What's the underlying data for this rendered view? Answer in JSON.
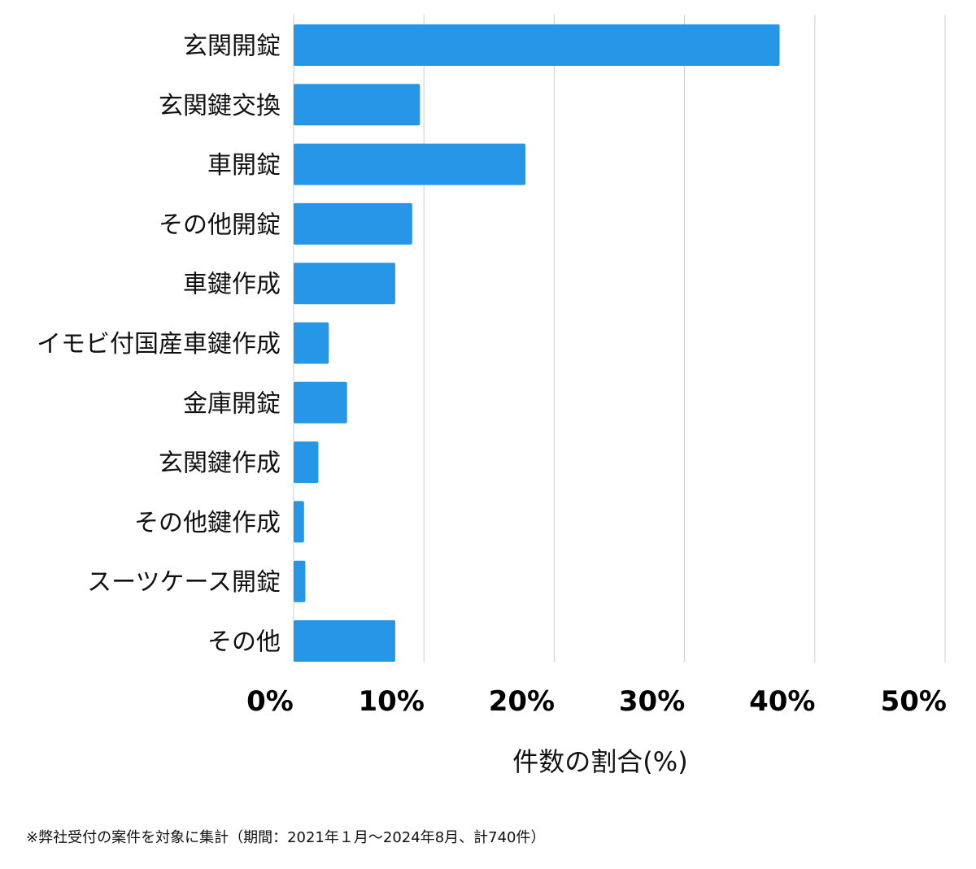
{
  "chart_data": {
    "type": "bar",
    "orientation": "horizontal",
    "categories": [
      "玄関開錠",
      "玄関鍵交換",
      "車開錠",
      "その他開錠",
      "車鍵作成",
      "イモビ付国産車鍵作成",
      "金庫開錠",
      "玄関鍵作成",
      "その他鍵作成",
      "スーツケース開錠",
      "その他"
    ],
    "values": [
      37.3,
      9.7,
      17.8,
      9.1,
      7.8,
      2.7,
      4.1,
      1.9,
      0.8,
      0.9,
      7.8
    ],
    "xlabel": "件数の割合(%)",
    "xlim": [
      0,
      50
    ],
    "xticks": [
      0,
      10,
      20,
      30,
      40,
      50
    ],
    "xtick_labels": [
      "0%",
      "10%",
      "20%",
      "30%",
      "40%",
      "50%"
    ],
    "grid": "vertical",
    "bar_color": "#2696e6"
  },
  "footnote": "※弊社受付の案件を対象に集計（期間：2021年１月〜2024年8月、計740件）"
}
